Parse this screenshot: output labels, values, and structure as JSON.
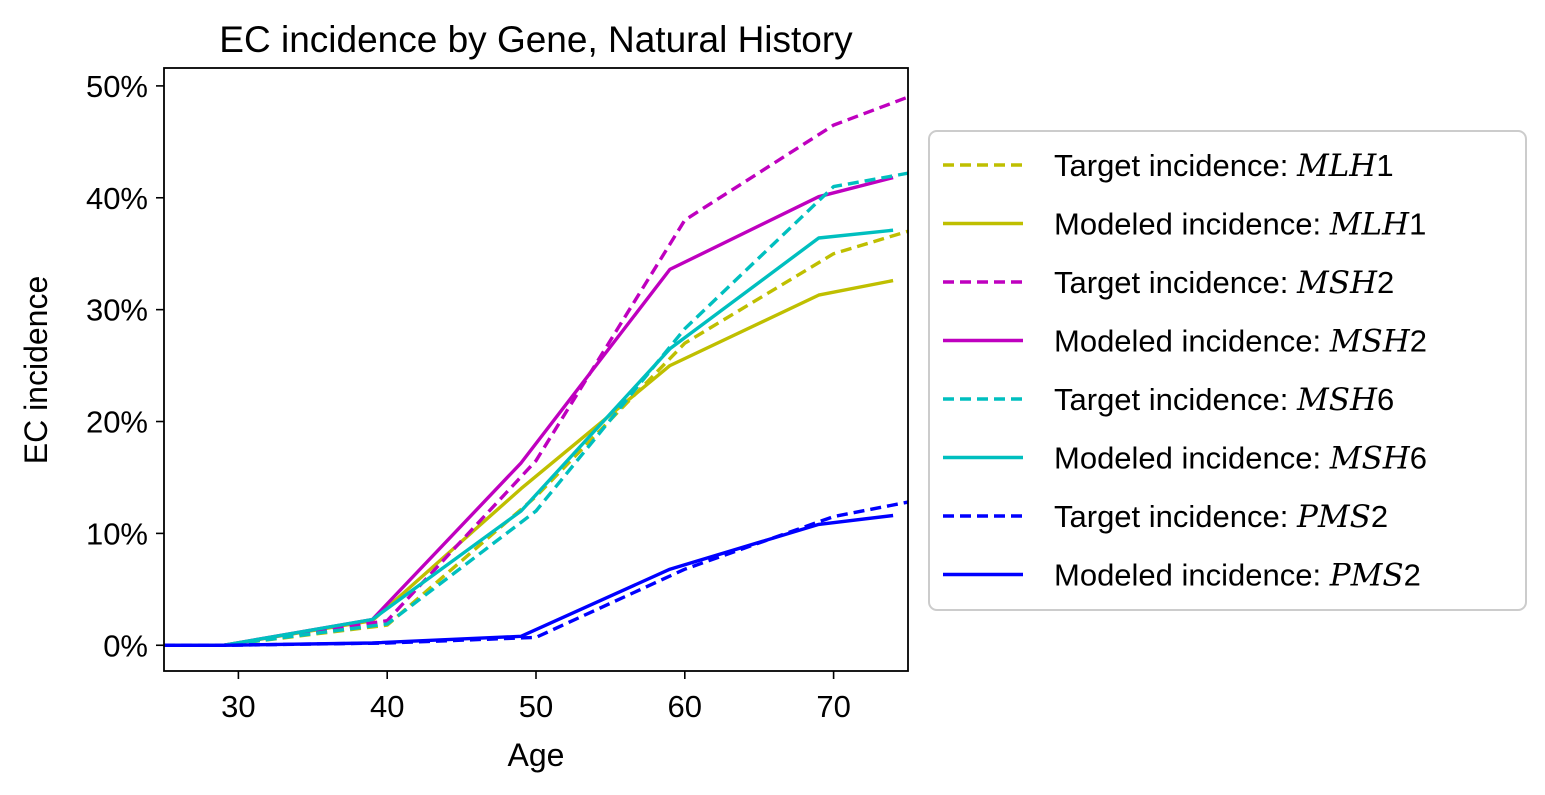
{
  "chart_data": {
    "type": "line",
    "title": "EC incidence by Gene, Natural History",
    "xlabel": "Age",
    "ylabel": "EC incidence",
    "xlim": [
      25,
      75
    ],
    "ylim": [
      -0.023,
      0.516
    ],
    "x_ticks": [
      "30",
      "40",
      "50",
      "60",
      "70"
    ],
    "y_ticks": [
      "0%",
      "10%",
      "20%",
      "30%",
      "40%",
      "50%"
    ],
    "grid": false,
    "legend_position": "right, outside plot",
    "series": [
      {
        "name": "Target incidence: MLH1",
        "label_prefix": "Target incidence: ",
        "gene": "MLH1",
        "color": "#bfbf00",
        "style": "dashed",
        "x": [
          25,
          29,
          40,
          50,
          60,
          70,
          75
        ],
        "y": [
          0.0,
          0.0,
          0.018,
          0.133,
          0.27,
          0.35,
          0.37
        ]
      },
      {
        "name": "Modeled incidence: MLH1",
        "label_prefix": "Modeled incidence: ",
        "gene": "MLH1",
        "color": "#bfbf00",
        "style": "solid",
        "x": [
          25,
          29,
          39,
          49,
          59,
          69,
          74
        ],
        "y": [
          0.0,
          0.0,
          0.022,
          0.14,
          0.25,
          0.313,
          0.326
        ]
      },
      {
        "name": "Target incidence: MSH2",
        "label_prefix": "Target incidence: ",
        "gene": "MSH2",
        "color": "#bf00bf",
        "style": "dashed",
        "x": [
          25,
          29,
          40,
          50,
          60,
          70,
          75
        ],
        "y": [
          0.0,
          0.0,
          0.022,
          0.165,
          0.38,
          0.465,
          0.49
        ]
      },
      {
        "name": "Modeled incidence: MSH2",
        "label_prefix": "Modeled incidence: ",
        "gene": "MSH2",
        "color": "#bf00bf",
        "style": "solid",
        "x": [
          25,
          29,
          39,
          49,
          59,
          69,
          74
        ],
        "y": [
          0.0,
          0.0,
          0.023,
          0.163,
          0.336,
          0.401,
          0.418
        ]
      },
      {
        "name": "Target incidence: MSH6",
        "label_prefix": "Target incidence: ",
        "gene": "MSH6",
        "color": "#00bfbf",
        "style": "dashed",
        "x": [
          25,
          29,
          40,
          50,
          60,
          70,
          75
        ],
        "y": [
          0.0,
          0.0,
          0.019,
          0.12,
          0.283,
          0.41,
          0.422
        ]
      },
      {
        "name": "Modeled incidence: MSH6",
        "label_prefix": "Modeled incidence: ",
        "gene": "MSH6",
        "color": "#00bfbf",
        "style": "solid",
        "x": [
          25,
          29,
          39,
          49,
          59,
          69,
          74
        ],
        "y": [
          0.0,
          0.0,
          0.023,
          0.12,
          0.265,
          0.364,
          0.371
        ]
      },
      {
        "name": "Target incidence: PMS2",
        "label_prefix": "Target incidence: ",
        "gene": "PMS2",
        "color": "#0000ff",
        "style": "dashed",
        "x": [
          25,
          29,
          40,
          50,
          60,
          70,
          75
        ],
        "y": [
          0.0,
          0.0,
          0.002,
          0.007,
          0.068,
          0.115,
          0.128
        ]
      },
      {
        "name": "Modeled incidence: PMS2",
        "label_prefix": "Modeled incidence: ",
        "gene": "PMS2",
        "color": "#0000ff",
        "style": "solid",
        "x": [
          25,
          29,
          39,
          49,
          59,
          69,
          74
        ],
        "y": [
          0.0,
          0.0,
          0.002,
          0.008,
          0.068,
          0.108,
          0.116
        ]
      }
    ]
  }
}
